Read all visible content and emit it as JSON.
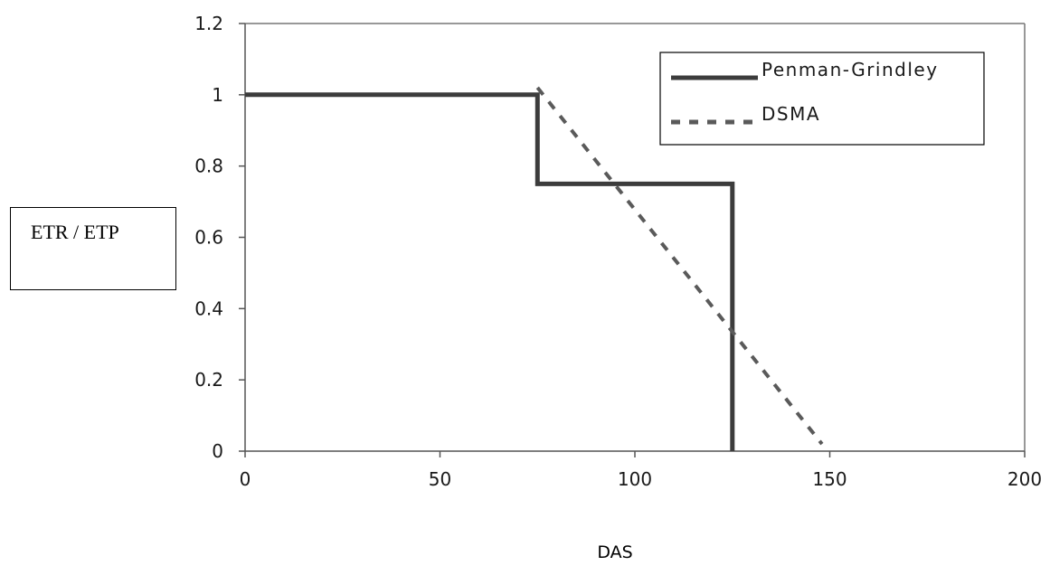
{
  "chart_data": {
    "type": "line",
    "title": "",
    "xlabel": "DAS",
    "ylabel": "ETR / ETP",
    "xlim": [
      0,
      200
    ],
    "ylim": [
      0,
      1.2
    ],
    "x_ticks": [
      "0",
      "50",
      "100",
      "150",
      "200"
    ],
    "y_ticks": [
      "0",
      "0.2",
      "0.4",
      "0.6",
      "0.8",
      "1",
      "1.2"
    ],
    "grid": false,
    "legend_position": "top-right",
    "series": [
      {
        "name": "Penman-Grindley",
        "style": "solid",
        "color": "#3c3c3c",
        "points": [
          [
            0,
            1
          ],
          [
            75,
            1
          ],
          [
            75,
            0.75
          ],
          [
            125,
            0.75
          ],
          [
            125,
            0
          ]
        ]
      },
      {
        "name": "DSMA",
        "style": "dashed",
        "color": "#5a5a5a",
        "points": [
          [
            75,
            1.02
          ],
          [
            148,
            0.02
          ]
        ]
      }
    ]
  }
}
